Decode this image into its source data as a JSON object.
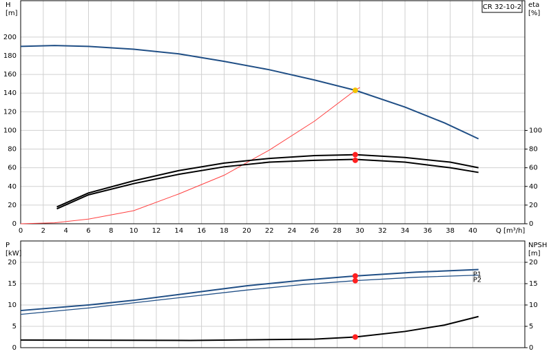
{
  "chart_data": [
    {
      "type": "line",
      "model": "CR 32-10-2",
      "ylabel": "H",
      "yunit": "[m]",
      "y2label": "eta",
      "y2unit": "[%]",
      "xlabel": "Q [m³/h]",
      "xlim": [
        0,
        44.6
      ],
      "xticks": [
        0,
        2,
        4,
        6,
        8,
        10,
        12,
        14,
        16,
        18,
        20,
        22,
        24,
        26,
        28,
        30,
        32,
        34,
        36,
        38,
        40
      ],
      "ylim": [
        0,
        239
      ],
      "yticks": [
        0,
        20,
        40,
        60,
        80,
        100,
        120,
        140,
        160,
        180,
        200
      ],
      "y2lim": [
        0,
        239
      ],
      "y2ticks": [
        0,
        20,
        40,
        60,
        80,
        100
      ],
      "grid": true,
      "series": [
        {
          "color": "#1f4e85",
          "width": 2,
          "x": [
            0,
            3,
            6,
            10,
            14,
            18,
            22,
            26,
            29.6,
            34,
            37.5,
            40.5
          ],
          "values": [
            190,
            191,
            190,
            187,
            182,
            174,
            165,
            154,
            143,
            125,
            108,
            91
          ]
        },
        {
          "color": "#ff4040",
          "width": 1,
          "x": [
            0,
            3,
            6,
            10,
            14,
            18,
            22,
            26,
            29.6,
            30
          ],
          "values": [
            0,
            1,
            5,
            14,
            32,
            52,
            79,
            110,
            143,
            146
          ]
        },
        {
          "color": "#000000",
          "width": 2,
          "axis": "y2",
          "x": [
            3.2,
            6,
            10,
            14,
            18,
            22,
            26,
            29.6,
            34,
            38,
            40.5
          ],
          "values": [
            18,
            33,
            46,
            57,
            65,
            70,
            73,
            74,
            71,
            66,
            60
          ]
        },
        {
          "color": "#000000",
          "width": 2,
          "axis": "y2",
          "x": [
            3.2,
            6,
            10,
            14,
            18,
            22,
            26,
            29.6,
            34,
            38,
            40.5
          ],
          "values": [
            16,
            31,
            43,
            53,
            61,
            66,
            68,
            69,
            66,
            60,
            55
          ]
        }
      ],
      "points": [
        {
          "x": 29.6,
          "y": 143,
          "color": "#f5c400"
        },
        {
          "x": 29.6,
          "y": 74,
          "color": "#ff2020",
          "axis": "y2"
        },
        {
          "x": 29.6,
          "y": 68,
          "color": "#ff2020",
          "axis": "y2"
        }
      ]
    },
    {
      "type": "line",
      "ylabel": "P",
      "yunit": "[kW]",
      "y2label": "NPSH",
      "y2unit": "[m]",
      "xlim": [
        0,
        44.6
      ],
      "xticks": [
        0,
        2,
        4,
        6,
        8,
        10,
        12,
        14,
        16,
        18,
        20,
        22,
        24,
        26,
        28,
        30,
        32,
        34,
        36,
        38,
        40
      ],
      "ylim": [
        0,
        25
      ],
      "yticks": [
        0,
        5,
        10,
        15,
        20
      ],
      "y2lim": [
        0,
        25
      ],
      "y2ticks": [
        0,
        5,
        10,
        15,
        20
      ],
      "grid": true,
      "series": [
        {
          "name": "P1",
          "color": "#1f4e85",
          "width": 2,
          "x": [
            0,
            6,
            10,
            15,
            20,
            25,
            29.6,
            35,
            40.5
          ],
          "values": [
            8.7,
            10,
            11.1,
            12.8,
            14.5,
            15.8,
            16.8,
            17.7,
            18.3
          ]
        },
        {
          "name": "P2",
          "color": "#1f4e85",
          "width": 1.3,
          "x": [
            0,
            6,
            10,
            15,
            20,
            25,
            29.6,
            35,
            40.5
          ],
          "values": [
            7.8,
            9.3,
            10.5,
            12,
            13.5,
            14.8,
            15.7,
            16.5,
            17
          ]
        },
        {
          "color": "#000000",
          "width": 2,
          "axis": "y2",
          "x": [
            0,
            15,
            22,
            26,
            29.6,
            34,
            37.5,
            40.5
          ],
          "values": [
            1.8,
            1.7,
            1.9,
            2.0,
            2.5,
            3.8,
            5.3,
            7.3
          ]
        }
      ],
      "points": [
        {
          "x": 29.6,
          "y": 16.8,
          "color": "#ff2020"
        },
        {
          "x": 29.6,
          "y": 15.7,
          "color": "#ff2020"
        },
        {
          "x": 29.6,
          "y": 2.5,
          "color": "#ff2020",
          "axis": "y2"
        }
      ]
    }
  ]
}
